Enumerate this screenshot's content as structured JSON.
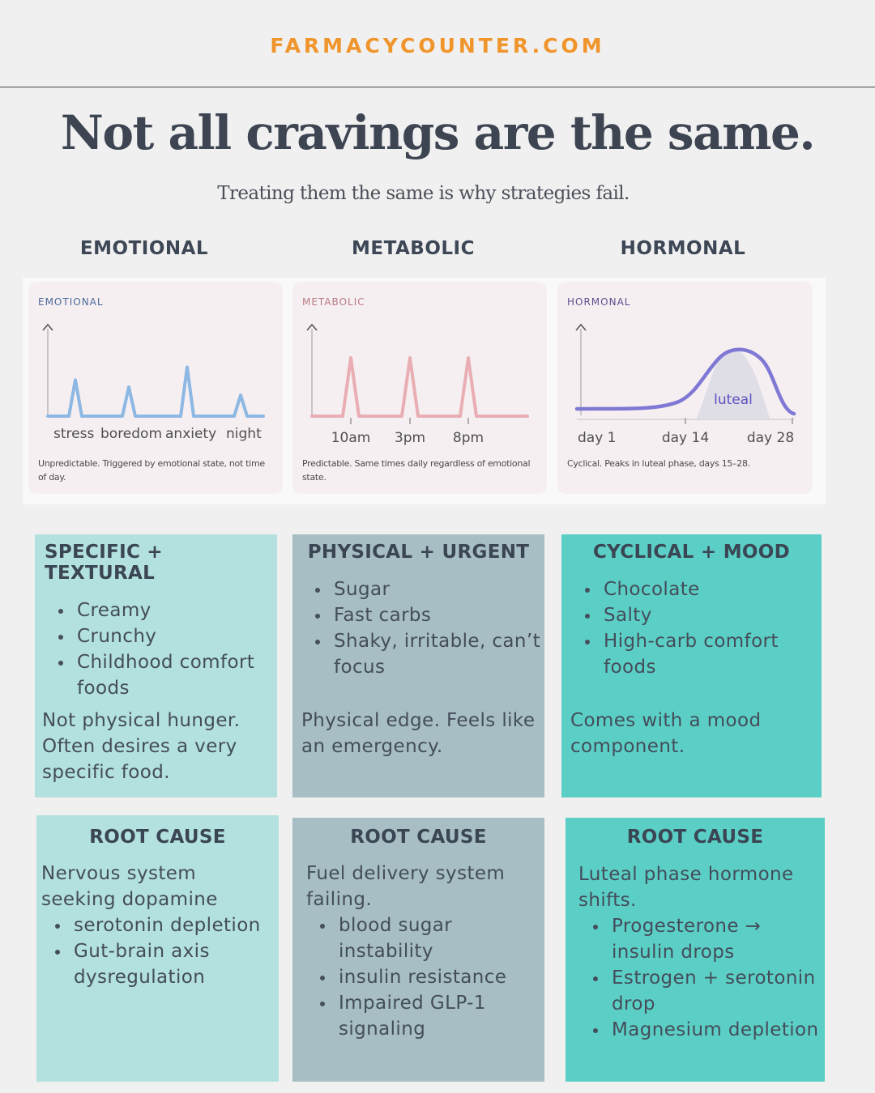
{
  "header": {
    "site": "FARMACYCOUNTER.COM"
  },
  "title": "Not all cravings are the same.",
  "subtitle": "Treating them the same is why strategies fail.",
  "columns": [
    "EMOTIONAL",
    "METABOLIC",
    "HORMONAL"
  ],
  "colors": {
    "emotional_line": "#8db8e3",
    "metabolic_line": "#e8aeb3",
    "hormonal_line": "#7f78d4",
    "emotional_panel": "#b3e1df",
    "metabolic_panel": "#a7bec4",
    "hormonal_panel": "#5bcfc6",
    "brand": "#f0952c"
  },
  "chart_data": [
    {
      "type": "line",
      "title": "EMOTIONAL",
      "categories": [
        "stress",
        "boredom",
        "anxiety",
        "night"
      ],
      "values": [
        0.62,
        0.5,
        0.84,
        0.36
      ],
      "caption": "Unpredictable. Triggered by emotional state, not time of day."
    },
    {
      "type": "line",
      "title": "METABOLIC",
      "categories": [
        "10am",
        "3pm",
        "8pm"
      ],
      "values": [
        1,
        1,
        1
      ],
      "caption": "Predictable. Same times daily regardless of emotional state."
    },
    {
      "type": "area",
      "title": "HORMONAL",
      "categories": [
        "day 1",
        "day 14",
        "day 28"
      ],
      "annotation": "luteal",
      "caption": "Cyclical. Peaks in luteal phase, days 15–28."
    }
  ],
  "panels": [
    {
      "heading": "SPECIFIC + TEXTURAL",
      "items": [
        "Creamy",
        "Crunchy",
        "Childhood comfort foods"
      ],
      "note": "Not physical hunger. Often desires a very specific food."
    },
    {
      "heading": "PHYSICAL + URGENT",
      "items": [
        "Sugar",
        "Fast carbs",
        "Shaky, irritable, can’t focus"
      ],
      "note": "Physical edge. Feels like an emergency."
    },
    {
      "heading": "CYCLICAL + MOOD",
      "items": [
        "Chocolate",
        "Salty",
        "High-carb comfort foods"
      ],
      "note": "Comes with a mood component."
    }
  ],
  "root_causes": [
    {
      "heading": "ROOT CAUSE",
      "intro": "Nervous system seeking dopamine",
      "items": [
        "serotonin depletion",
        "Gut-brain axis dysregulation"
      ]
    },
    {
      "heading": "ROOT CAUSE",
      "intro": "Fuel delivery system failing.",
      "items": [
        "blood sugar instability",
        "insulin resistance",
        "Impaired GLP-1 signaling"
      ]
    },
    {
      "heading": "ROOT CAUSE",
      "intro": "Luteal phase hormone shifts.",
      "items": [
        "Progesterone → insulin drops",
        "Estrogen + serotonin drop",
        "Magnesium depletion"
      ]
    }
  ]
}
